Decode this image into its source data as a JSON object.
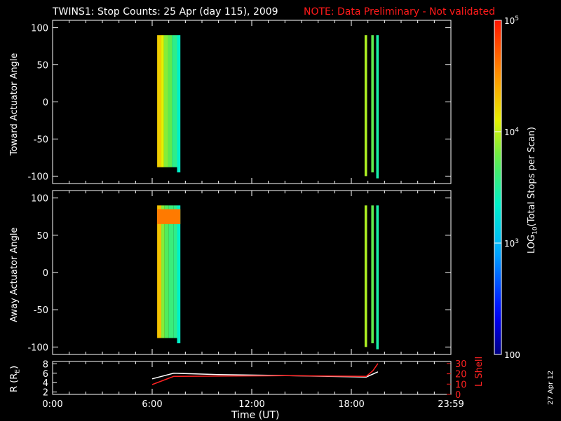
{
  "title": "TWINS1: Stop Counts: 25 Apr (day 115), 2009",
  "note": "NOTE: Data Preliminary - Not validated",
  "datestamp": "27 Apr 12",
  "colors": {
    "note": "#ff1a1a",
    "r_line": "#ffffff",
    "lshell_line": "#ff2222",
    "background": "#000000"
  },
  "chart_data": [
    {
      "type": "heatmap",
      "ylabel": "Toward Actuator Angle",
      "ylim": [
        -110,
        110
      ],
      "yticks": [
        "100",
        "50",
        "0",
        "-50",
        "-100"
      ],
      "xlim": [
        0,
        24
      ],
      "blocks": [
        {
          "x": [
            6.3,
            6.55
          ],
          "y": [
            -88,
            90
          ],
          "level": 4.25
        },
        {
          "x": [
            6.55,
            6.7
          ],
          "y": [
            -88,
            90
          ],
          "level": 4.1
        },
        {
          "x": [
            6.7,
            6.95
          ],
          "y": [
            -88,
            90
          ],
          "level": 3.85
        },
        {
          "x": [
            6.95,
            7.2
          ],
          "y": [
            -88,
            90
          ],
          "level": 3.75
        },
        {
          "x": [
            7.2,
            7.5
          ],
          "y": [
            -88,
            90
          ],
          "level": 3.55
        },
        {
          "x": [
            7.5,
            7.7
          ],
          "y": [
            -95,
            90
          ],
          "level": 3.35
        },
        {
          "x": [
            18.8,
            18.95
          ],
          "y": [
            -100,
            90
          ],
          "level": 3.95
        },
        {
          "x": [
            19.2,
            19.35
          ],
          "y": [
            -95,
            90
          ],
          "level": 3.75
        },
        {
          "x": [
            19.5,
            19.65
          ],
          "y": [
            -103,
            90
          ],
          "level": 3.45
        }
      ]
    },
    {
      "type": "heatmap",
      "ylabel": "Away Actuator Angle",
      "ylim": [
        -110,
        110
      ],
      "yticks": [
        "100",
        "50",
        "0",
        "-50",
        "-100"
      ],
      "xlim": [
        0,
        24
      ],
      "blocks": [
        {
          "x": [
            6.3,
            6.55
          ],
          "y": [
            -88,
            90
          ],
          "level": 4.3
        },
        {
          "x": [
            6.55,
            6.75
          ],
          "y": [
            -88,
            90
          ],
          "level": 3.85
        },
        {
          "x": [
            6.75,
            7.0
          ],
          "y": [
            -88,
            90
          ],
          "level": 3.7
        },
        {
          "x": [
            7.0,
            7.3
          ],
          "y": [
            -88,
            90
          ],
          "level": 3.6
        },
        {
          "x": [
            7.3,
            7.5
          ],
          "y": [
            -88,
            90
          ],
          "level": 3.55
        },
        {
          "x": [
            7.5,
            7.7
          ],
          "y": [
            -95,
            90
          ],
          "level": 3.35
        },
        {
          "x": [
            6.3,
            7.7
          ],
          "y": [
            65,
            85
          ],
          "level": 4.6
        },
        {
          "x": [
            18.8,
            18.95
          ],
          "y": [
            -100,
            90
          ],
          "level": 3.95
        },
        {
          "x": [
            19.2,
            19.35
          ],
          "y": [
            -95,
            90
          ],
          "level": 3.75
        },
        {
          "x": [
            19.5,
            19.65
          ],
          "y": [
            -103,
            90
          ],
          "level": 3.45
        }
      ]
    },
    {
      "type": "line",
      "ylabel_left": "R (R",
      "ylabel_left_sub": "E",
      "ylabel_left_close": ")",
      "ylabel_right": "L Shell",
      "ylim_left": [
        1.5,
        8.5
      ],
      "ylim_right": [
        0,
        32
      ],
      "yticks_left": [
        "8",
        "6",
        "4",
        "2"
      ],
      "yticks_right": [
        "30",
        "20",
        "10",
        "0"
      ],
      "xlabel": "Time (UT)",
      "xticks": [
        "0:00",
        "6:00",
        "12:00",
        "18:00",
        "23:59"
      ],
      "series": [
        {
          "axis": "left",
          "x": [
            6.0,
            7.3,
            10,
            14,
            18.9,
            19.6
          ],
          "y": [
            4.8,
            6.0,
            5.7,
            5.5,
            5.2,
            6.3
          ]
        },
        {
          "axis": "right",
          "x": [
            6.0,
            7.3,
            10,
            14,
            18.9,
            19.3,
            19.6
          ],
          "y": [
            9.5,
            17.5,
            17.8,
            18.2,
            17.5,
            23.0,
            30.0
          ]
        }
      ]
    }
  ],
  "colorbar": {
    "label_pre": "LOG",
    "label_sub": "10",
    "label_post": "(Total Stops per Scan)",
    "min": 2,
    "max": 5,
    "ticks": [
      {
        "value": 5,
        "base": "10",
        "exp": "5"
      },
      {
        "value": 4,
        "base": "10",
        "exp": "4"
      },
      {
        "value": 3,
        "base": "10",
        "exp": "3"
      },
      {
        "value": 2,
        "base": "100",
        "exp": ""
      }
    ]
  }
}
